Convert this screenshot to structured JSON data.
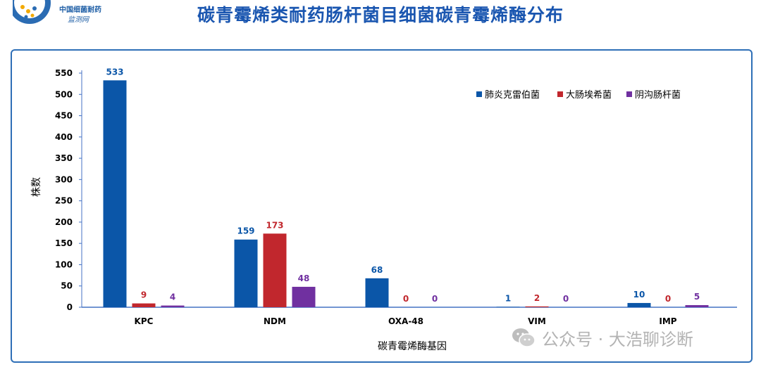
{
  "header": {
    "title": "碳青霉烯类耐药肠杆菌目细菌碳青霉烯酶分布",
    "logo_line1": "中国细菌耐药",
    "logo_line2": "监测网"
  },
  "watermark": {
    "text": "公众号 · 大浩聊诊断",
    "icon": "wechat-icon"
  },
  "chart_data": {
    "type": "bar",
    "categories": [
      "KPC",
      "NDM",
      "OXA-48",
      "VIM",
      "IMP"
    ],
    "series": [
      {
        "name": "肺炎克雷伯菌",
        "values": [
          533,
          159,
          68,
          1,
          10
        ],
        "color": "#0b56a8"
      },
      {
        "name": "大肠埃希菌",
        "values": [
          9,
          173,
          0,
          2,
          0
        ],
        "color": "#c1272d"
      },
      {
        "name": "阴沟肠杆菌",
        "values": [
          4,
          48,
          0,
          0,
          5
        ],
        "color": "#7030a0"
      }
    ],
    "xlabel": "碳青霉烯酶基因",
    "ylabel": "株数",
    "ylim": [
      0,
      550
    ],
    "yticks": [
      0,
      50,
      100,
      150,
      200,
      250,
      300,
      350,
      400,
      450,
      500,
      550
    ],
    "grid": false,
    "legend_position": "top-right",
    "data_labels": true
  }
}
